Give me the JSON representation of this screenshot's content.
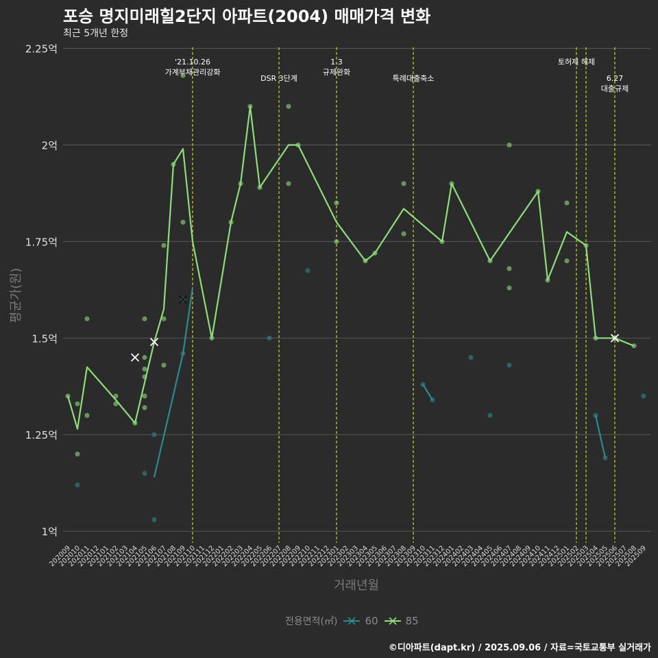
{
  "chart_data": {
    "type": "line",
    "title": "포승 명지미래힐2단지 아파트(2004) 매매가격 변화",
    "subtitle": "최근 5개년 한정",
    "xlabel": "거래년월",
    "ylabel": "평균가(원)",
    "caption": "©디아파트(dapt.kr) / 2025.09.06 / 자료=국토교통부 실거래가",
    "legend_title": "전용면적(㎡)",
    "ylim": [
      0.97,
      2.26
    ],
    "y_ticks": [
      {
        "value": 1.0,
        "label": "1억"
      },
      {
        "value": 1.25,
        "label": "1.25억"
      },
      {
        "value": 1.5,
        "label": "1.5억"
      },
      {
        "value": 1.75,
        "label": "1.75억"
      },
      {
        "value": 2.0,
        "label": "2억"
      },
      {
        "value": 2.25,
        "label": "2.25억"
      }
    ],
    "categories": [
      "202009",
      "202010",
      "202011",
      "202012",
      "202101",
      "202102",
      "202103",
      "202104",
      "202105",
      "202106",
      "202107",
      "202108",
      "202109",
      "202110",
      "202111",
      "202112",
      "202201",
      "202202",
      "202203",
      "202204",
      "202205",
      "202206",
      "202207",
      "202208",
      "202209",
      "202210",
      "202211",
      "202212",
      "202301",
      "202302",
      "202303",
      "202304",
      "202305",
      "202306",
      "202307",
      "202308",
      "202309",
      "202310",
      "202311",
      "202312",
      "202401",
      "202402",
      "202403",
      "202404",
      "202405",
      "202406",
      "202407",
      "202408",
      "202409",
      "202410",
      "202411",
      "202412",
      "202501",
      "202502",
      "202503",
      "202504",
      "202505",
      "202506",
      "202507",
      "202508",
      "202509"
    ],
    "events": [
      {
        "label": "'21.10.26\n가계부채관리강화",
        "x": 13.0,
        "row": 0
      },
      {
        "label": "DSR 3단계",
        "x": 22.0,
        "row": 1
      },
      {
        "label": "1.3\n규제완화",
        "x": 28.0,
        "row": 0
      },
      {
        "label": "특례대출축소",
        "x": 36.0,
        "row": 1
      },
      {
        "label": "토허제 해제",
        "x": 53.0,
        "row": 0
      },
      {
        "label": "",
        "x": 54.0,
        "row": 0
      },
      {
        "label": "6.27\n대출규제",
        "x": 57.0,
        "row": 1
      }
    ],
    "series": [
      {
        "name": "60",
        "color": "#2a8c8c",
        "line_segments": [
          [
            [
              9,
              1.14
            ],
            [
              12,
              1.46
            ],
            [
              13,
              1.63
            ]
          ],
          [
            [
              37,
              1.38
            ],
            [
              38,
              1.34
            ]
          ],
          [
            [
              55,
              1.3
            ],
            [
              56,
              1.19
            ]
          ]
        ],
        "points": [
          [
            1,
            1.12
          ],
          [
            8,
            1.15
          ],
          [
            9,
            1.25
          ],
          [
            9,
            1.03
          ],
          [
            12,
            1.46
          ],
          [
            12,
            1.6
          ],
          [
            21,
            1.5
          ],
          [
            25,
            1.675
          ],
          [
            37,
            1.38
          ],
          [
            38,
            1.34
          ],
          [
            42,
            1.45
          ],
          [
            44,
            1.3
          ],
          [
            46,
            1.43
          ],
          [
            55,
            1.3
          ],
          [
            56,
            1.19
          ],
          [
            60,
            1.35
          ]
        ],
        "x_markers": [
          [
            12,
            1.6
          ]
        ]
      },
      {
        "name": "85",
        "color": "#8be078",
        "line_segments": [
          [
            [
              0,
              1.35
            ],
            [
              1,
              1.265
            ],
            [
              2,
              1.425
            ],
            [
              5,
              1.34
            ],
            [
              7,
              1.28
            ],
            [
              9,
              1.49
            ],
            [
              10,
              1.575
            ],
            [
              11,
              1.95
            ],
            [
              12,
              1.99
            ],
            [
              13,
              1.75
            ],
            [
              15,
              1.5
            ],
            [
              17,
              1.8
            ],
            [
              18,
              1.9
            ],
            [
              19,
              2.1
            ],
            [
              20,
              1.89
            ],
            [
              23,
              2.0
            ],
            [
              24,
              2.0
            ],
            [
              28,
              1.8
            ],
            [
              31,
              1.7
            ],
            [
              32,
              1.72
            ],
            [
              35,
              1.835
            ],
            [
              39,
              1.75
            ],
            [
              40,
              1.9
            ],
            [
              44,
              1.7
            ],
            [
              49,
              1.88
            ],
            [
              50,
              1.65
            ],
            [
              52,
              1.775
            ],
            [
              54,
              1.74
            ],
            [
              55,
              1.5
            ],
            [
              57,
              1.5
            ],
            [
              59,
              1.48
            ]
          ]
        ],
        "points": [
          [
            0,
            1.35
          ],
          [
            1,
            1.33
          ],
          [
            1,
            1.2
          ],
          [
            2,
            1.55
          ],
          [
            2,
            1.3
          ],
          [
            5,
            1.35
          ],
          [
            5,
            1.33
          ],
          [
            7,
            1.28
          ],
          [
            8,
            1.55
          ],
          [
            8,
            1.45
          ],
          [
            8,
            1.42
          ],
          [
            8,
            1.4
          ],
          [
            8,
            1.35
          ],
          [
            8,
            1.32
          ],
          [
            10,
            1.74
          ],
          [
            10,
            1.55
          ],
          [
            10,
            1.43
          ],
          [
            11,
            1.95
          ],
          [
            12,
            2.18
          ],
          [
            12,
            1.8
          ],
          [
            15,
            1.5
          ],
          [
            17,
            1.8
          ],
          [
            18,
            1.9
          ],
          [
            19,
            2.1
          ],
          [
            20,
            1.89
          ],
          [
            23,
            2.1
          ],
          [
            23,
            1.9
          ],
          [
            24,
            2.0
          ],
          [
            28,
            1.85
          ],
          [
            28,
            1.75
          ],
          [
            31,
            1.7
          ],
          [
            32,
            1.72
          ],
          [
            35,
            1.9
          ],
          [
            35,
            1.77
          ],
          [
            39,
            1.75
          ],
          [
            40,
            1.9
          ],
          [
            44,
            1.7
          ],
          [
            46,
            2.0
          ],
          [
            46,
            1.68
          ],
          [
            46,
            1.63
          ],
          [
            49,
            1.88
          ],
          [
            50,
            1.65
          ],
          [
            52,
            1.85
          ],
          [
            52,
            1.7
          ],
          [
            54,
            1.74
          ],
          [
            55,
            1.5
          ],
          [
            57,
            1.5
          ],
          [
            59,
            1.48
          ]
        ],
        "x_markers": [
          [
            7,
            1.45
          ],
          [
            9,
            1.49
          ],
          [
            57,
            1.5
          ]
        ]
      }
    ]
  }
}
